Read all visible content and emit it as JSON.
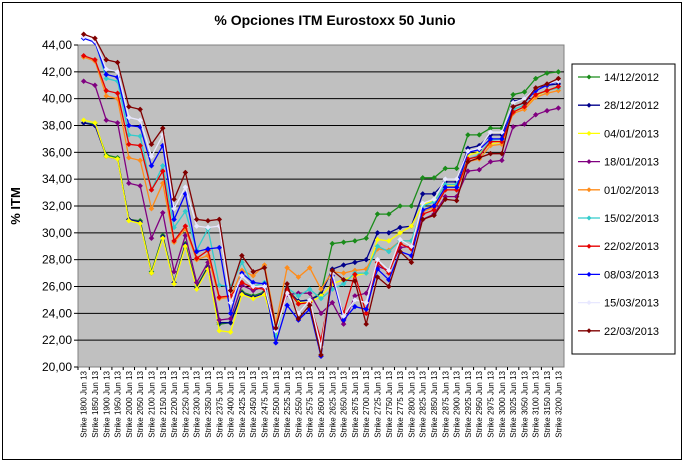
{
  "chart_data": {
    "type": "line",
    "title": "% Opciones ITM Eurostoxx 50 Junio",
    "ylabel": "% ITM",
    "xlabel": "",
    "ylim": [
      20,
      44
    ],
    "yticks": [
      "20,00",
      "22,00",
      "24,00",
      "26,00",
      "28,00",
      "30,00",
      "32,00",
      "34,00",
      "36,00",
      "38,00",
      "40,00",
      "42,00",
      "44,00"
    ],
    "grid": "horizontal",
    "plot_background": "#c0c0c0",
    "legend_position": "right",
    "categories": [
      "Strike 1800 Jun 13",
      "Strike 1850 Jun 13",
      "Strike 1900 Jun 13",
      "Strike 1950 Jun 13",
      "Strike 2000 Jun 13",
      "Strike 2050 Jun 13",
      "Strike 2100 Jun 13",
      "Strike 2150 Jun 13",
      "Strike 2200 Jun 13",
      "Strike 2250 Jun 13",
      "Strike 2300 Jun 13",
      "Strike 2350 Jun 13",
      "Strike 2375 Jun 13",
      "Strike 2400 Jun 13",
      "Strike 2425 Jun 13",
      "Strike 2450 Jun 13",
      "Strike 2475 Jun 13",
      "Strike 2500 Jun 13",
      "Strike 2525 Jun 13",
      "Strike 2550 Jun 13",
      "Strike 2575 Jun 13",
      "Strike 2600 Jun 13",
      "Strike 2625 Jun 13",
      "Strike 2650 Jun 13",
      "Strike 2675 Jun 13",
      "Strike 2700 Jun 13",
      "Strike 2725 Jun 13",
      "Strike 2750 Jun 13",
      "Strike 2775 Jun 13",
      "Strike 2800 Jun 13",
      "Strike 2825 Jun 13",
      "Strike 2850 Jun 13",
      "Strike 2875 Jun 13",
      "Strike 2900 Jun 13",
      "Strike 2925 Jun 13",
      "Strike 2950 Jun 13",
      "Strike 2975 Jun 13",
      "Strike 3000 Jun 13",
      "Strike 3025 Jun 13",
      "Strike 3050 Jun 13",
      "Strike 3100 Jun 13",
      "Strike 3150 Jun 13",
      "Strike 3200 Jun 13"
    ],
    "series": [
      {
        "name": "14/12/2012",
        "color": "#1a8c1a",
        "values": [
          38.2,
          38.1,
          35.8,
          35.6,
          31.0,
          30.9,
          27.1,
          29.8,
          26.3,
          29.2,
          26.0,
          27.5,
          23.2,
          23.3,
          25.6,
          25.3,
          25.6,
          23.0,
          25.8,
          24.9,
          25.0,
          25.5,
          29.2,
          29.3,
          29.4,
          29.6,
          31.4,
          31.4,
          32.0,
          32.0,
          34.1,
          34.1,
          34.8,
          34.8,
          37.3,
          37.3,
          37.8,
          37.8,
          40.3,
          40.5,
          41.5,
          41.9,
          42.0
        ]
      },
      {
        "name": "28/12/2012",
        "color": "#00008b",
        "values": [
          38.2,
          38.0,
          35.7,
          35.5,
          31.0,
          30.8,
          27.0,
          29.7,
          26.3,
          29.1,
          25.9,
          27.4,
          23.3,
          23.3,
          25.5,
          25.2,
          25.5,
          23.0,
          25.7,
          24.9,
          25.0,
          25.4,
          27.3,
          27.6,
          27.8,
          28.0,
          30.0,
          30.0,
          30.4,
          30.5,
          32.9,
          32.9,
          33.8,
          33.8,
          36.3,
          36.5,
          37.3,
          37.3,
          39.8,
          40.0,
          40.8,
          41.0,
          41.1
        ]
      },
      {
        "name": "04/01/2013",
        "color": "#ffff00",
        "values": [
          38.4,
          38.2,
          35.7,
          35.5,
          30.9,
          30.7,
          27.0,
          29.6,
          26.2,
          29.0,
          25.8,
          27.3,
          22.7,
          22.6,
          25.4,
          25.1,
          25.4,
          22.5,
          25.6,
          24.8,
          24.8,
          25.3,
          26.2,
          26.5,
          26.8,
          27.0,
          29.5,
          29.4,
          30.0,
          30.5,
          32.1,
          32.4,
          33.5,
          33.5,
          35.8,
          36.0,
          36.6,
          36.8,
          39.0,
          39.4,
          40.2,
          40.6,
          40.8
        ]
      },
      {
        "name": "18/01/2013",
        "color": "#800080",
        "values": [
          41.3,
          41.0,
          38.4,
          38.2,
          33.7,
          33.5,
          29.6,
          31.5,
          27.1,
          29.8,
          26.3,
          27.8,
          23.5,
          23.6,
          26.1,
          25.7,
          26.0,
          23.0,
          25.4,
          25.5,
          25.5,
          24.0,
          24.8,
          23.2,
          25.3,
          25.5,
          27.5,
          27.2,
          28.9,
          29.0,
          31.0,
          31.4,
          32.7,
          32.7,
          34.6,
          34.7,
          35.3,
          35.4,
          37.9,
          38.1,
          38.8,
          39.1,
          39.3
        ]
      },
      {
        "name": "01/02/2013",
        "color": "#ff8c1a",
        "values": [
          43.1,
          42.8,
          40.2,
          40.0,
          35.6,
          35.4,
          31.8,
          33.7,
          29.3,
          30.3,
          28.0,
          28.3,
          25.1,
          25.2,
          27.2,
          26.8,
          27.6,
          23.2,
          27.4,
          26.7,
          27.4,
          25.8,
          27.1,
          27.0,
          27.2,
          27.3,
          28.8,
          28.7,
          29.4,
          29.4,
          31.6,
          31.9,
          33.2,
          33.2,
          35.3,
          35.5,
          36.5,
          36.6,
          38.9,
          39.2,
          40.1,
          40.4,
          40.6
        ]
      },
      {
        "name": "15/02/2013",
        "color": "#33cccc",
        "values": [
          44.5,
          44.3,
          41.5,
          41.3,
          37.3,
          37.2,
          33.2,
          35.0,
          30.4,
          31.6,
          28.7,
          30.3,
          26.1,
          26.0,
          27.8,
          26.0,
          26.3,
          22.3,
          25.9,
          25.3,
          25.8,
          25.1,
          25.8,
          26.2,
          27.0,
          27.0,
          29.0,
          28.6,
          29.4,
          29.4,
          32.0,
          32.3,
          33.6,
          33.6,
          35.5,
          35.8,
          36.9,
          37.0,
          39.2,
          39.5,
          40.3,
          40.6,
          40.8
        ]
      },
      {
        "name": "22/02/2013",
        "color": "#e60000",
        "values": [
          43.2,
          42.9,
          40.6,
          40.4,
          36.6,
          36.5,
          33.2,
          34.6,
          29.4,
          30.5,
          28.1,
          28.7,
          25.2,
          25.3,
          26.3,
          25.9,
          25.8,
          23.0,
          25.8,
          24.7,
          24.8,
          22.0,
          26.5,
          24.0,
          26.9,
          24.0,
          27.8,
          27.0,
          29.2,
          28.8,
          31.4,
          31.7,
          33.2,
          33.2,
          35.5,
          35.7,
          36.8,
          36.8,
          39.0,
          39.4,
          40.3,
          40.6,
          40.9
        ]
      },
      {
        "name": "08/03/2013",
        "color": "#0000ff",
        "values": [
          44.5,
          44.2,
          41.8,
          41.6,
          38.0,
          37.9,
          35.0,
          36.5,
          31.0,
          32.9,
          28.6,
          28.8,
          28.9,
          24.0,
          27.0,
          26.3,
          26.2,
          21.8,
          24.6,
          23.5,
          24.3,
          20.8,
          26.8,
          23.5,
          24.5,
          24.3,
          27.3,
          26.5,
          28.6,
          28.3,
          31.7,
          32.0,
          33.4,
          33.4,
          36.0,
          36.2,
          37.0,
          37.0,
          39.4,
          39.7,
          40.6,
          41.0,
          41.3
        ]
      },
      {
        "name": "15/03/2013",
        "color": "#e8e8ff",
        "values": [
          44.6,
          44.3,
          42.2,
          42.0,
          38.6,
          38.4,
          35.7,
          37.3,
          31.8,
          33.4,
          30.5,
          30.4,
          30.5,
          24.8,
          26.8,
          26.0,
          26.0,
          22.7,
          25.5,
          24.0,
          25.0,
          21.5,
          27.0,
          23.8,
          25.0,
          24.8,
          28.0,
          27.2,
          29.5,
          29.0,
          32.2,
          32.5,
          34.0,
          34.0,
          36.1,
          36.3,
          37.5,
          37.5,
          39.7,
          40.0,
          40.8,
          41.1,
          41.3
        ]
      },
      {
        "name": "22/03/2013",
        "color": "#800000",
        "values": [
          44.8,
          44.5,
          42.9,
          42.7,
          39.4,
          39.2,
          36.6,
          37.8,
          32.5,
          34.5,
          31.0,
          30.9,
          31.0,
          25.7,
          28.3,
          27.1,
          27.4,
          22.9,
          26.2,
          23.6,
          24.6,
          20.9,
          27.2,
          26.5,
          26.4,
          23.2,
          26.7,
          26.0,
          28.6,
          27.8,
          31.0,
          31.3,
          32.5,
          32.4,
          35.3,
          35.6,
          35.9,
          35.9,
          39.4,
          39.7,
          40.8,
          41.1,
          41.5
        ]
      }
    ]
  }
}
